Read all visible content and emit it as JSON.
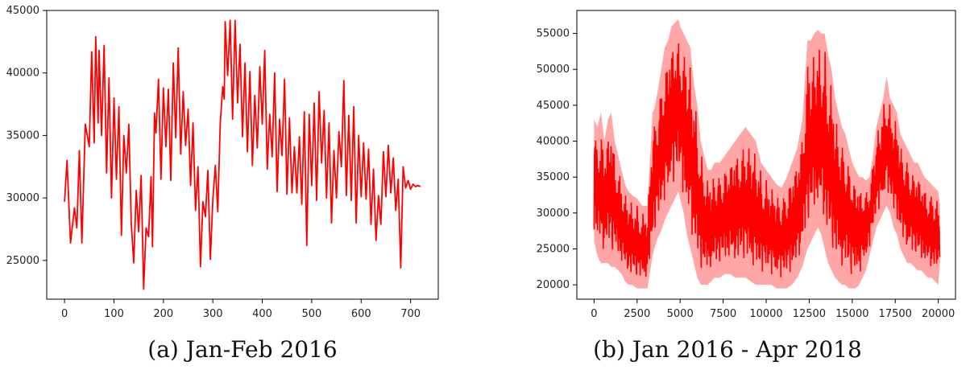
{
  "chart_data": [
    {
      "type": "line",
      "caption": "(a) Jan-Feb 2016",
      "xlim": [
        -36,
        756
      ],
      "ylim": [
        21900,
        45000
      ],
      "xticks": [
        0,
        100,
        200,
        300,
        400,
        500,
        600,
        700
      ],
      "yticks": [
        25000,
        30000,
        35000,
        40000,
        45000
      ],
      "grid": false,
      "color": "#ff0000",
      "series": [
        {
          "x": [
            0,
            5,
            12,
            20,
            25,
            30,
            35,
            42,
            50,
            55,
            60,
            63,
            68,
            70,
            75,
            80,
            85,
            90,
            95,
            100,
            105,
            110,
            115,
            120,
            125,
            130,
            135,
            140,
            145,
            150,
            155,
            160,
            165,
            170,
            175,
            178,
            182,
            185,
            190,
            195,
            200,
            205,
            210,
            215,
            220,
            225,
            230,
            235,
            240,
            245,
            250,
            255,
            260,
            265,
            270,
            275,
            280,
            285,
            290,
            295,
            300,
            305,
            310,
            315,
            320,
            323,
            325,
            330,
            335,
            340,
            345,
            350,
            355,
            360,
            365,
            370,
            375,
            380,
            385,
            390,
            395,
            400,
            405,
            410,
            415,
            420,
            425,
            430,
            435,
            440,
            445,
            450,
            455,
            460,
            465,
            470,
            475,
            480,
            485,
            490,
            495,
            500,
            505,
            510,
            515,
            520,
            525,
            530,
            535,
            540,
            545,
            550,
            555,
            560,
            565,
            570,
            575,
            580,
            585,
            590,
            595,
            600,
            605,
            610,
            615,
            620,
            625,
            630,
            635,
            640,
            645,
            650,
            655,
            660,
            665,
            670,
            675,
            680,
            685,
            690,
            695,
            700,
            705,
            710,
            715,
            720
          ],
          "y": [
            29700,
            33000,
            26400,
            29200,
            27600,
            33800,
            26400,
            35900,
            34100,
            41700,
            34400,
            42900,
            36000,
            41800,
            35000,
            42200,
            32000,
            39600,
            30000,
            38000,
            31500,
            37300,
            27000,
            35000,
            32000,
            35900,
            28000,
            24800,
            30600,
            27300,
            31800,
            22700,
            27600,
            26900,
            31700,
            26100,
            36800,
            35200,
            39500,
            31500,
            38800,
            34100,
            38700,
            31400,
            40800,
            34800,
            42000,
            33500,
            38500,
            34200,
            37100,
            31000,
            36000,
            29000,
            32500,
            24500,
            29700,
            28500,
            32200,
            25100,
            29900,
            32600,
            28900,
            36000,
            38900,
            37900,
            44100,
            39800,
            44200,
            36300,
            44200,
            37600,
            42300,
            34900,
            40800,
            33700,
            40100,
            32600,
            38200,
            34000,
            40500,
            35900,
            41800,
            32300,
            36700,
            33300,
            40000,
            30500,
            36300,
            33400,
            39500,
            30300,
            36400,
            30400,
            34100,
            30400,
            34900,
            29500,
            36900,
            26200,
            36700,
            31000,
            37600,
            29800,
            38500,
            32800,
            37000,
            30000,
            36000,
            28000,
            33800,
            30000,
            35300,
            32500,
            39400,
            30200,
            36600,
            29800,
            37300,
            28000,
            35000,
            30100,
            34400,
            29900,
            33900,
            27900,
            32300,
            26600,
            30200,
            27900,
            33700,
            30100,
            34200,
            30400,
            33200,
            29000,
            31500,
            24400,
            32500,
            30800,
            31400,
            30700,
            31100,
            30900,
            31000,
            30900
          ]
        }
      ]
    },
    {
      "type": "line",
      "caption": "(b) Jan 2016 - Apr 2018",
      "xlim": [
        -1000,
        21000
      ],
      "ylim": [
        18000,
        58200
      ],
      "xticks": [
        0,
        2500,
        5000,
        7500,
        10000,
        12500,
        15000,
        17500,
        20000
      ],
      "yticks": [
        20000,
        25000,
        30000,
        35000,
        40000,
        45000,
        50000,
        55000
      ],
      "grid": false,
      "color": "#ff0000",
      "series": [
        {
          "x": [
            0,
            200,
            400,
            600,
            800,
            1000,
            1200,
            1400,
            1600,
            1800,
            2000,
            2200,
            2500,
            2800,
            3100,
            3400,
            3500,
            3700,
            3900,
            4100,
            4300,
            4500,
            4700,
            4900,
            5000,
            5200,
            5400,
            5600,
            5800,
            6000,
            6200,
            6400,
            6600,
            6800,
            7000,
            7300,
            7600,
            7900,
            8200,
            8500,
            8800,
            9100,
            9400,
            9700,
            10000,
            10300,
            10600,
            10900,
            11200,
            11500,
            11800,
            12100,
            12400,
            12600,
            12800,
            13000,
            13200,
            13400,
            13600,
            13800,
            14000,
            14200,
            14400,
            14600,
            14800,
            15000,
            15200,
            15400,
            15600,
            15800,
            16000,
            16200,
            16400,
            16600,
            16800,
            17000,
            17200,
            17400,
            17600,
            17800,
            18000,
            18200,
            18400,
            18600,
            18800,
            19000,
            19200,
            19400,
            19600,
            19800,
            20000,
            20100
          ],
          "y_max": [
            43000,
            42000,
            44000,
            40000,
            43000,
            44000,
            40000,
            38000,
            36000,
            34000,
            33000,
            32500,
            32000,
            31000,
            31000,
            44000,
            44500,
            47000,
            50000,
            53000,
            54000,
            56000,
            56500,
            57000,
            56000,
            55000,
            54000,
            53000,
            48000,
            45000,
            40000,
            38000,
            36000,
            36000,
            37000,
            37000,
            38000,
            39000,
            40000,
            41000,
            42000,
            41000,
            40000,
            37000,
            36000,
            35000,
            34000,
            33500,
            35000,
            37000,
            39000,
            43000,
            54000,
            54000,
            55000,
            55500,
            55000,
            55000,
            52000,
            50000,
            46000,
            44000,
            42000,
            41000,
            39000,
            37000,
            36000,
            35000,
            35000,
            34500,
            35000,
            38000,
            42000,
            44000,
            46000,
            49000,
            46000,
            45000,
            44000,
            41000,
            40000,
            39000,
            38000,
            37000,
            37000,
            36000,
            35000,
            34500,
            34000,
            33500,
            33000,
            31000
          ],
          "y_min": [
            26000,
            24000,
            23000,
            23000,
            23000,
            22500,
            22500,
            22000,
            21500,
            20500,
            20000,
            20000,
            19500,
            19500,
            19500,
            24000,
            25000,
            26500,
            27500,
            29000,
            30000,
            31000,
            32000,
            33000,
            32000,
            30000,
            27000,
            25000,
            23000,
            21000,
            20000,
            20000,
            20000,
            20500,
            21000,
            21000,
            21500,
            21500,
            21000,
            21000,
            21000,
            20500,
            20000,
            20000,
            20000,
            20000,
            19500,
            19500,
            19500,
            20000,
            21000,
            22500,
            25000,
            26000,
            27000,
            28000,
            27000,
            25000,
            23000,
            22000,
            21000,
            20500,
            20000,
            20000,
            19500,
            19500,
            19500,
            20000,
            21000,
            22000,
            24000,
            26000,
            28000,
            29000,
            30000,
            31000,
            30000,
            28000,
            27000,
            25000,
            24000,
            23000,
            23000,
            22500,
            22000,
            22000,
            21500,
            21000,
            21000,
            20500,
            20000,
            23000
          ]
        }
      ]
    }
  ]
}
